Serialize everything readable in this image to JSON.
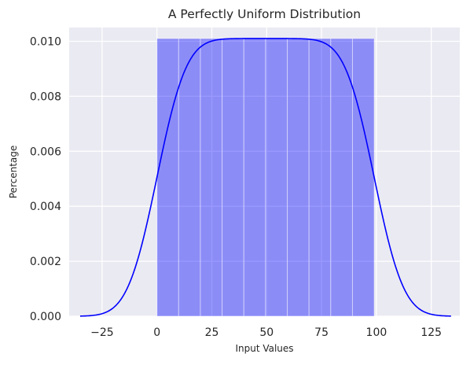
{
  "chart_data": {
    "type": "bar",
    "title": "A Perfectly Uniform Distribution",
    "xlabel": "Input Values",
    "ylabel": "Percentage",
    "xlim": [
      -40,
      138
    ],
    "ylim": [
      0,
      0.0105
    ],
    "x_ticks": [
      -25,
      0,
      25,
      50,
      75,
      100,
      125
    ],
    "x_tick_labels": [
      "−25",
      "0",
      "25",
      "50",
      "75",
      "100",
      "125"
    ],
    "y_ticks": [
      0,
      0.002,
      0.004,
      0.006,
      0.008,
      0.01
    ],
    "y_tick_labels": [
      "0.000",
      "0.002",
      "0.004",
      "0.006",
      "0.008",
      "0.010"
    ],
    "grid": true,
    "background_color": "#EAEAF2",
    "series": [
      {
        "type": "histogram",
        "color": "#0000FF",
        "opacity": 0.4,
        "bins": [
          {
            "x0": 0,
            "x1": 9.9,
            "density": 0.0101
          },
          {
            "x0": 9.9,
            "x1": 19.8,
            "density": 0.0101
          },
          {
            "x0": 19.8,
            "x1": 29.7,
            "density": 0.0101
          },
          {
            "x0": 29.7,
            "x1": 39.6,
            "density": 0.0101
          },
          {
            "x0": 39.6,
            "x1": 49.5,
            "density": 0.0101
          },
          {
            "x0": 49.5,
            "x1": 59.4,
            "density": 0.0101
          },
          {
            "x0": 59.4,
            "x1": 69.3,
            "density": 0.0101
          },
          {
            "x0": 69.3,
            "x1": 79.2,
            "density": 0.0101
          },
          {
            "x0": 79.2,
            "x1": 89.1,
            "density": 0.0101
          },
          {
            "x0": 89.1,
            "x1": 99,
            "density": 0.0101
          }
        ]
      },
      {
        "type": "line",
        "color": "#0000FF",
        "kde": {
          "data_min": 0,
          "data_max": 99,
          "bandwidth": 10.6,
          "x_min": -35,
          "x_max": 134
        }
      }
    ]
  }
}
